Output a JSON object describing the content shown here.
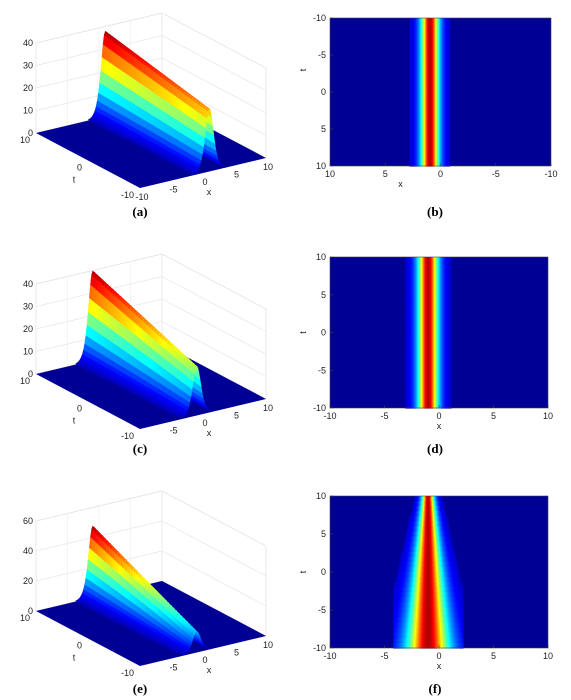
{
  "figure": {
    "panels": [
      {
        "id": "a",
        "caption": "(a)",
        "kind": "surface3d"
      },
      {
        "id": "b",
        "caption": "(b)",
        "kind": "heatmap"
      },
      {
        "id": "c",
        "caption": "(c)",
        "kind": "surface3d"
      },
      {
        "id": "d",
        "caption": "(d)",
        "kind": "heatmap"
      },
      {
        "id": "e",
        "caption": "(e)",
        "kind": "surface3d"
      },
      {
        "id": "f",
        "caption": "(f)",
        "kind": "heatmap"
      }
    ]
  },
  "chart_data": [
    {
      "panel": "a",
      "type": "surface",
      "colormap": "jet",
      "xlabel": "x",
      "ylabel": "t",
      "xlim": [
        -10,
        10
      ],
      "ylim": [
        -10,
        10
      ],
      "zlim": [
        0,
        40
      ],
      "xticks": [
        -10,
        -5,
        0,
        5,
        10
      ],
      "yticks": [
        10,
        0,
        -10
      ],
      "zticks": [
        0,
        10,
        20,
        30,
        40
      ],
      "soliton": {
        "peak_start": 38,
        "peak_end": 28,
        "center_x": 1,
        "drift": 0,
        "width": 0.9
      }
    },
    {
      "panel": "b",
      "type": "heatmap",
      "colormap": "jet",
      "xlabel": "x",
      "ylabel": "t",
      "xlim": [
        10,
        -10
      ],
      "ylim": [
        -10,
        10
      ],
      "xticks": [
        10,
        5,
        0,
        -5,
        -10
      ],
      "yticks": [
        -10,
        -5,
        0,
        5,
        10
      ],
      "x_reversed": true,
      "y_reversed": true,
      "soliton": {
        "center_x": 1,
        "drift": 0,
        "width": 0.75
      }
    },
    {
      "panel": "c",
      "type": "surface",
      "colormap": "jet",
      "xlabel": "x",
      "ylabel": "t",
      "xlim": [
        -10,
        10
      ],
      "ylim": [
        -10,
        10
      ],
      "zlim": [
        0,
        40
      ],
      "xticks": [
        -5,
        0,
        5,
        10
      ],
      "yticks": [
        10,
        0,
        -10
      ],
      "zticks": [
        0,
        10,
        20,
        30,
        40
      ],
      "soliton": {
        "peak_start": 40,
        "peak_end": 22,
        "center_x": -1,
        "drift": 0,
        "width": 0.9
      }
    },
    {
      "panel": "d",
      "type": "heatmap",
      "colormap": "jet",
      "xlabel": "x",
      "ylabel": "t",
      "xlim": [
        -10,
        10
      ],
      "ylim": [
        -10,
        10
      ],
      "xticks": [
        -10,
        -5,
        0,
        5,
        10
      ],
      "yticks": [
        10,
        5,
        0,
        -5,
        -10
      ],
      "x_reversed": false,
      "y_reversed": false,
      "soliton": {
        "center_x": -1,
        "drift": 0,
        "width": 0.85
      }
    },
    {
      "panel": "e",
      "type": "surface",
      "colormap": "jet",
      "xlabel": "x",
      "ylabel": "t",
      "xlim": [
        -10,
        10
      ],
      "ylim": [
        -10,
        10
      ],
      "zlim": [
        0,
        60
      ],
      "xticks": [
        -5,
        0,
        5,
        10
      ],
      "yticks": [
        10,
        0,
        -10
      ],
      "zticks": [
        0,
        20,
        40,
        60
      ],
      "soliton": {
        "peak_start": 48,
        "peak_end": 14,
        "center_x": -1,
        "drift": 0,
        "width": 0.9
      }
    },
    {
      "panel": "f",
      "type": "heatmap",
      "colormap": "jet",
      "xlabel": "x",
      "ylabel": "t",
      "xlim": [
        -10,
        10
      ],
      "ylim": [
        -10,
        10
      ],
      "xticks": [
        -10,
        -5,
        0,
        5,
        10
      ],
      "yticks": [
        10,
        5,
        0,
        -5,
        -10
      ],
      "x_reversed": false,
      "y_reversed": false,
      "soliton": {
        "center_x": -1,
        "drift": 0,
        "width": 1.1,
        "width_t": [
          {
            "t": 10,
            "w": 0.5
          },
          {
            "t": -10,
            "w": 1.8
          }
        ]
      }
    }
  ]
}
